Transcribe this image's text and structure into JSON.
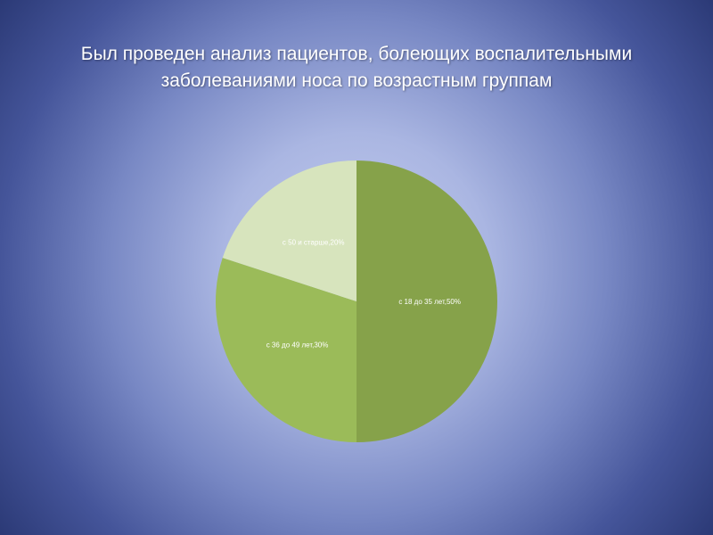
{
  "title_line1": "Был проведен анализ пациентов, болеющих воспалительными",
  "title_line2": "заболеваниями носа по возрастным группам",
  "chart_data": {
    "type": "pie",
    "categories": [
      "с 18 до 35 лет",
      "с  36 до 49 лет",
      "с  50 и старше"
    ],
    "values": [
      50,
      30,
      20
    ],
    "labels": [
      "с 18 до 35 лет,50%",
      "с  36 до 49 лет,30%",
      "с  50 и старше,20%"
    ],
    "colors": [
      "#86a24a",
      "#9bbb59",
      "#d7e4bd"
    ],
    "start": "top",
    "direction": "clockwise"
  }
}
